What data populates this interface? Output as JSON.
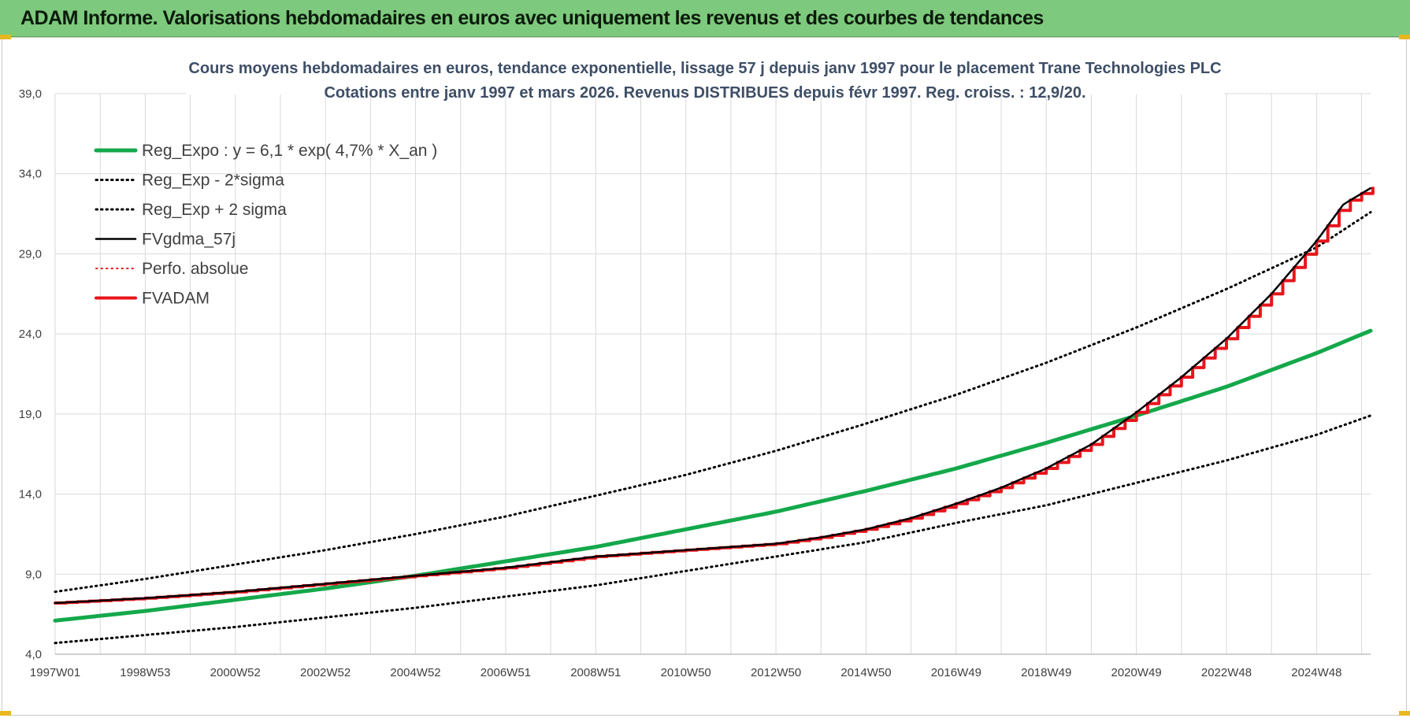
{
  "banner": {
    "title": "ADAM Informe. Valorisations hebdomadaires en euros avec uniquement les revenus et des courbes de tendances"
  },
  "colors": {
    "banner_bg": "#7dc97d",
    "reg": "#14a84b",
    "fvgdma": "#000000",
    "fvadam": "#e8151b",
    "perfo": "#e8151b",
    "grid": "#d9d9d9"
  },
  "chart_data": {
    "type": "line",
    "title": "Cours moyens hebdomadaires en euros, tendance exponentielle, lissage 57 j depuis janv 1997  pour le  placement Trane Technologies PLC",
    "subtitle": "Cotations entre janv 1997 et mars 2026. Revenus DISTRIBUES depuis févr 1997. Reg. croiss. : 12,9/20.",
    "xlabel": "",
    "ylabel": "",
    "x_range": [
      1997.0,
      2026.2
    ],
    "ylim": [
      4.0,
      39.0
    ],
    "y_ticks": [
      "4,0",
      "9,0",
      "14,0",
      "19,0",
      "24,0",
      "29,0",
      "34,0",
      "39,0"
    ],
    "x_ticks": [
      {
        "label": "1997W01",
        "x": 1997.0
      },
      {
        "label": "1998W53",
        "x": 1999.0
      },
      {
        "label": "2000W52",
        "x": 2001.0
      },
      {
        "label": "2002W52",
        "x": 2003.0
      },
      {
        "label": "2004W52",
        "x": 2005.0
      },
      {
        "label": "2006W51",
        "x": 2007.0
      },
      {
        "label": "2008W51",
        "x": 2009.0
      },
      {
        "label": "2010W50",
        "x": 2011.0
      },
      {
        "label": "2012W50",
        "x": 2013.0
      },
      {
        "label": "2014W50",
        "x": 2015.0
      },
      {
        "label": "2016W49",
        "x": 2017.0
      },
      {
        "label": "2018W49",
        "x": 2019.0
      },
      {
        "label": "2020W49",
        "x": 2021.0
      },
      {
        "label": "2022W48",
        "x": 2023.0
      },
      {
        "label": "2024W48",
        "x": 2025.0
      }
    ],
    "grid": true,
    "legend_position": "top-left",
    "series": [
      {
        "key": "reg",
        "name": "Reg_Expo : y = 6,1 * exp( 4,7% *  X_an )",
        "style": "solid",
        "width": 5,
        "x": [
          1997,
          1999,
          2001,
          2003,
          2005,
          2007,
          2009,
          2011,
          2013,
          2015,
          2017,
          2019,
          2021,
          2023,
          2025,
          2026.2
        ],
        "y": [
          6.1,
          6.7,
          7.4,
          8.1,
          8.9,
          9.8,
          10.7,
          11.8,
          12.9,
          14.2,
          15.6,
          17.2,
          18.9,
          20.7,
          22.8,
          24.2
        ]
      },
      {
        "key": "lo",
        "name": "Reg_Exp - 2*sigma",
        "style": "dotted",
        "width": 3,
        "x": [
          1997,
          1999,
          2001,
          2003,
          2005,
          2007,
          2009,
          2011,
          2013,
          2015,
          2017,
          2019,
          2021,
          2023,
          2025,
          2026.2
        ],
        "y": [
          4.7,
          5.2,
          5.7,
          6.3,
          6.9,
          7.6,
          8.3,
          9.2,
          10.1,
          11.0,
          12.2,
          13.3,
          14.7,
          16.1,
          17.7,
          18.9
        ]
      },
      {
        "key": "hi",
        "name": "Reg_Exp + 2 sigma",
        "style": "dotted",
        "width": 3,
        "x": [
          1997,
          1999,
          2001,
          2003,
          2005,
          2007,
          2009,
          2011,
          2013,
          2015,
          2017,
          2019,
          2021,
          2023,
          2025,
          2026.2
        ],
        "y": [
          7.9,
          8.7,
          9.6,
          10.5,
          11.5,
          12.6,
          13.9,
          15.2,
          16.7,
          18.4,
          20.2,
          22.2,
          24.4,
          26.8,
          29.4,
          31.6
        ]
      },
      {
        "key": "fvgdma",
        "name": "FVgdma_57j",
        "style": "solid",
        "width": 2.5,
        "x": [
          1997,
          1999,
          2001,
          2003,
          2005,
          2007,
          2009,
          2011,
          2013,
          2014,
          2015,
          2016,
          2017,
          2018,
          2019,
          2020,
          2021,
          2022,
          2023,
          2024,
          2025,
          2025.6,
          2026.2
        ],
        "y": [
          7.2,
          7.5,
          7.9,
          8.4,
          8.9,
          9.4,
          10.1,
          10.5,
          10.9,
          11.3,
          11.8,
          12.5,
          13.4,
          14.4,
          15.6,
          17.1,
          19.1,
          21.3,
          23.7,
          26.5,
          29.8,
          32.1,
          33.1
        ]
      },
      {
        "key": "perfo",
        "name": "Perfo. absolue",
        "style": "dotted",
        "width": 2,
        "x": [],
        "y": []
      },
      {
        "key": "fvadam",
        "name": "FVADAM",
        "style": "stepped",
        "width": 4,
        "x": [
          1997,
          1999,
          2001,
          2003,
          2005,
          2007,
          2009,
          2011,
          2013,
          2014,
          2015,
          2016,
          2017,
          2018,
          2019,
          2020,
          2021,
          2022,
          2023,
          2024,
          2025,
          2025.6,
          2026.2
        ],
        "y": [
          7.2,
          7.5,
          7.9,
          8.4,
          8.9,
          9.4,
          10.1,
          10.5,
          10.9,
          11.3,
          11.8,
          12.5,
          13.4,
          14.4,
          15.6,
          17.1,
          19.1,
          21.3,
          23.7,
          26.5,
          29.8,
          32.1,
          33.1
        ]
      }
    ]
  }
}
